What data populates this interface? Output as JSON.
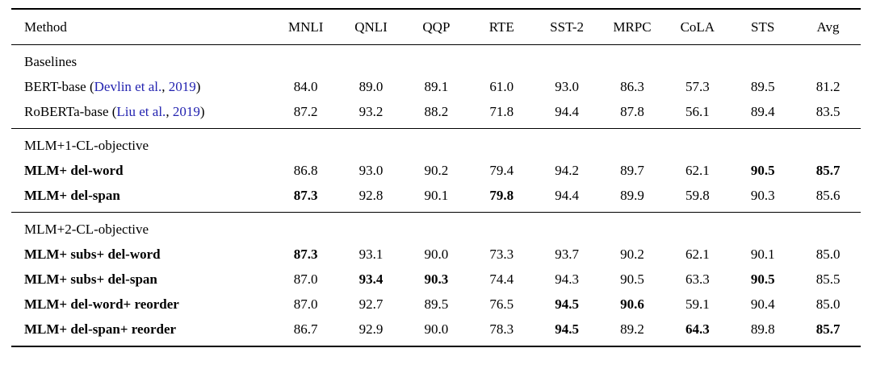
{
  "link_color": "#2323b0",
  "header": {
    "cols": [
      "Method",
      "MNLI",
      "QNLI",
      "QQP",
      "RTE",
      "SST-2",
      "MRPC",
      "CoLA",
      "STS",
      "Avg"
    ]
  },
  "sections": [
    {
      "label": "Baselines",
      "rows": [
        {
          "method_parts": {
            "pre": "BERT-base (",
            "cite_author": "Devlin et al.",
            "sep": ", ",
            "cite_year": "2019",
            "post": ")"
          },
          "method_bold": false,
          "values": [
            "84.0",
            "89.0",
            "89.1",
            "61.0",
            "93.0",
            "86.3",
            "57.3",
            "89.5",
            "81.2"
          ],
          "bold": [
            false,
            false,
            false,
            false,
            false,
            false,
            false,
            false,
            false
          ]
        },
        {
          "method_parts": {
            "pre": "RoBERTa-base (",
            "cite_author": "Liu et al.",
            "sep": ", ",
            "cite_year": "2019",
            "post": ")"
          },
          "method_bold": false,
          "values": [
            "87.2",
            "93.2",
            "88.2",
            "71.8",
            "94.4",
            "87.8",
            "56.1",
            "89.4",
            "83.5"
          ],
          "bold": [
            false,
            false,
            false,
            false,
            false,
            false,
            false,
            false,
            false
          ]
        }
      ]
    },
    {
      "label": "MLM+1-CL-objective",
      "rows": [
        {
          "method": "MLM+ del-word",
          "method_bold": true,
          "values": [
            "86.8",
            "93.0",
            "90.2",
            "79.4",
            "94.2",
            "89.7",
            "62.1",
            "90.5",
            "85.7"
          ],
          "bold": [
            false,
            false,
            false,
            false,
            false,
            false,
            false,
            true,
            true
          ]
        },
        {
          "method": "MLM+ del-span",
          "method_bold": true,
          "values": [
            "87.3",
            "92.8",
            "90.1",
            "79.8",
            "94.4",
            "89.9",
            "59.8",
            "90.3",
            "85.6"
          ],
          "bold": [
            true,
            false,
            false,
            true,
            false,
            false,
            false,
            false,
            false
          ]
        }
      ]
    },
    {
      "label": "MLM+2-CL-objective",
      "rows": [
        {
          "method": "MLM+ subs+ del-word",
          "method_bold": true,
          "values": [
            "87.3",
            "93.1",
            "90.0",
            "73.3",
            "93.7",
            "90.2",
            "62.1",
            "90.1",
            "85.0"
          ],
          "bold": [
            true,
            false,
            false,
            false,
            false,
            false,
            false,
            false,
            false
          ]
        },
        {
          "method": "MLM+ subs+ del-span",
          "method_bold": true,
          "values": [
            "87.0",
            "93.4",
            "90.3",
            "74.4",
            "94.3",
            "90.5",
            "63.3",
            "90.5",
            "85.5"
          ],
          "bold": [
            false,
            true,
            true,
            false,
            false,
            false,
            false,
            true,
            false
          ]
        },
        {
          "method": "MLM+ del-word+ reorder",
          "method_bold": true,
          "values": [
            "87.0",
            "92.7",
            "89.5",
            "76.5",
            "94.5",
            "90.6",
            "59.1",
            "90.4",
            "85.0"
          ],
          "bold": [
            false,
            false,
            false,
            false,
            true,
            true,
            false,
            false,
            false
          ]
        },
        {
          "method": "MLM+ del-span+ reorder",
          "method_bold": true,
          "values": [
            "86.7",
            "92.9",
            "90.0",
            "78.3",
            "94.5",
            "89.2",
            "64.3",
            "89.8",
            "85.7"
          ],
          "bold": [
            false,
            false,
            false,
            false,
            true,
            false,
            true,
            false,
            true
          ]
        }
      ]
    }
  ]
}
